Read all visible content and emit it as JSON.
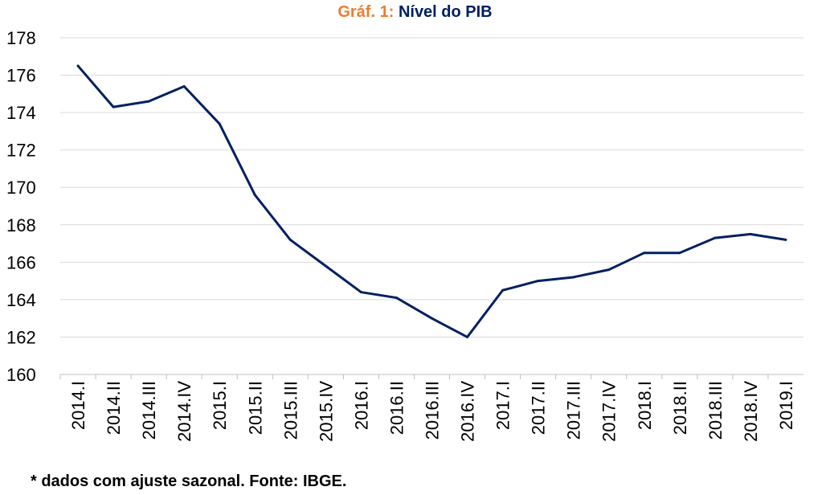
{
  "chart_data": {
    "type": "line",
    "title_prefix": "Gráf. 1:",
    "title": "Nível do PIB",
    "xlabel": "",
    "ylabel": "",
    "ylim": [
      160,
      178
    ],
    "yticks": [
      160,
      162,
      164,
      166,
      168,
      170,
      172,
      174,
      176,
      178
    ],
    "grid": true,
    "categories": [
      "2014.I",
      "2014.II",
      "2014.III",
      "2014.IV",
      "2015.I",
      "2015.II",
      "2015.III",
      "2015.IV",
      "2016.I",
      "2016.II",
      "2016.III",
      "2016.IV",
      "2017.I",
      "2017.II",
      "2017.III",
      "2017.IV",
      "2018.I",
      "2018.II",
      "2018.III",
      "2018.IV",
      "2019.I"
    ],
    "series": [
      {
        "name": "Nível do PIB",
        "color": "#002060",
        "values": [
          176.5,
          174.3,
          174.6,
          175.4,
          173.4,
          169.6,
          167.2,
          165.8,
          164.4,
          164.1,
          163.0,
          162.0,
          164.5,
          165.0,
          165.2,
          165.6,
          166.5,
          166.5,
          167.3,
          167.5,
          167.2
        ]
      }
    ],
    "note": "* dados com ajuste sazonal. Fonte: IBGE."
  }
}
